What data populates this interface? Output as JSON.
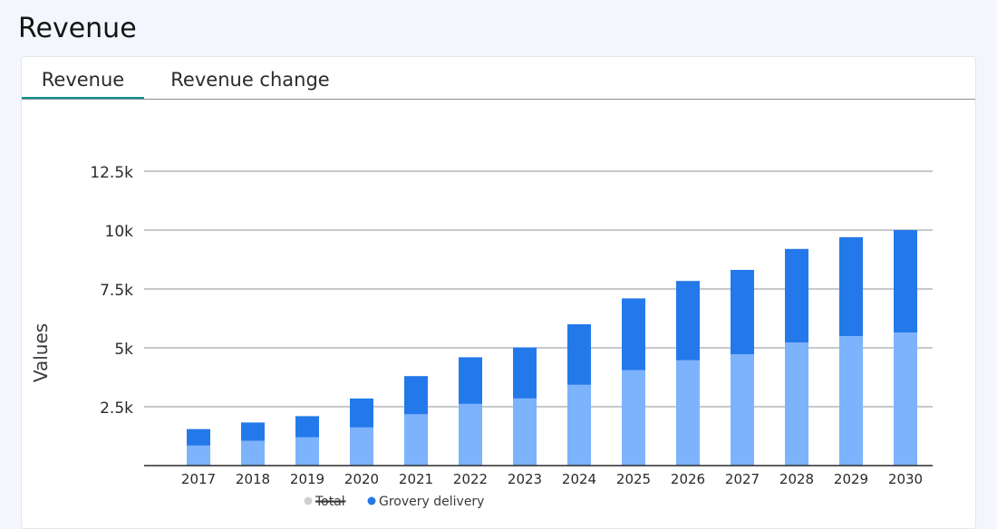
{
  "page": {
    "title": "Revenue"
  },
  "tabs": [
    {
      "label": "Revenue",
      "active": true
    },
    {
      "label": "Revenue change",
      "active": false
    }
  ],
  "colors": {
    "total": "#7db3fc",
    "grocery": "#2479ea",
    "legend_disabled": "#d0d0d0"
  },
  "chart_data": {
    "type": "bar",
    "stacked": true,
    "categories": [
      "2017",
      "2018",
      "2019",
      "2020",
      "2021",
      "2022",
      "2023",
      "2024",
      "2025",
      "2026",
      "2027",
      "2028",
      "2029",
      "2030"
    ],
    "series": [
      {
        "name": "Total",
        "hidden": true,
        "values": [
          850,
          1050,
          1200,
          1620,
          2180,
          2620,
          2850,
          3430,
          4050,
          4470,
          4730,
          5230,
          5500,
          5650
        ]
      },
      {
        "name": "Grovery delivery",
        "hidden": false,
        "values": [
          700,
          780,
          900,
          1230,
          1620,
          1980,
          2170,
          2570,
          3050,
          3370,
          3580,
          3970,
          4200,
          4350
        ]
      }
    ],
    "ylabel": "Values",
    "xlabel": "",
    "yticks": [
      "2.5k",
      "5k",
      "7.5k",
      "10k",
      "12.5k"
    ],
    "ytick_values": [
      2500,
      5000,
      7500,
      10000,
      12500
    ],
    "ylim": [
      0,
      12500
    ],
    "grid": true,
    "legend_position": "bottom-center"
  }
}
